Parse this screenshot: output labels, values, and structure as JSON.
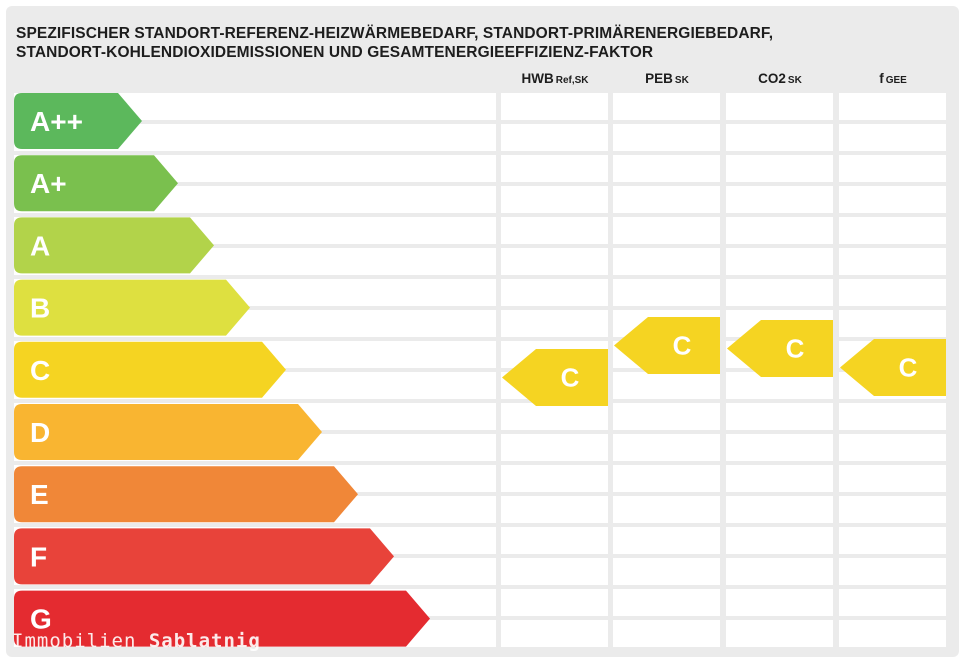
{
  "title_line1": "SPEZIFISCHER STANDORT-REFERENZ-HEIZWÄRMEBEDARF, STANDORT-PRIMÄRENERGIEBEDARF,",
  "title_line2": "STANDORT-KOHLENDIOXIDEMISSIONEN UND GESAMTENERGIEEFFIZIENZ-FAKTOR",
  "watermark": {
    "light": "Immobilien",
    "bold": "Sablatnig"
  },
  "chart_data": {
    "type": "energy-efficiency-scale",
    "classes": [
      {
        "label": "A++",
        "color": "#5cb85c"
      },
      {
        "label": "A+",
        "color": "#7ac04e"
      },
      {
        "label": "A",
        "color": "#b2d34a"
      },
      {
        "label": "B",
        "color": "#dee040"
      },
      {
        "label": "C",
        "color": "#f5d422"
      },
      {
        "label": "D",
        "color": "#f9b531"
      },
      {
        "label": "E",
        "color": "#f08738"
      },
      {
        "label": "F",
        "color": "#e8433a"
      },
      {
        "label": "G",
        "color": "#e42b30"
      }
    ],
    "columns": [
      {
        "name": "HWB",
        "subscript": "Ref,SK",
        "rating": "C"
      },
      {
        "name": "PEB",
        "subscript": "SK",
        "rating": "C"
      },
      {
        "name": "CO2",
        "subscript": "SK",
        "rating": "C"
      },
      {
        "name": "f",
        "subscript": "GEE",
        "rating": "C"
      }
    ],
    "indicator_color": "#f5d422"
  }
}
